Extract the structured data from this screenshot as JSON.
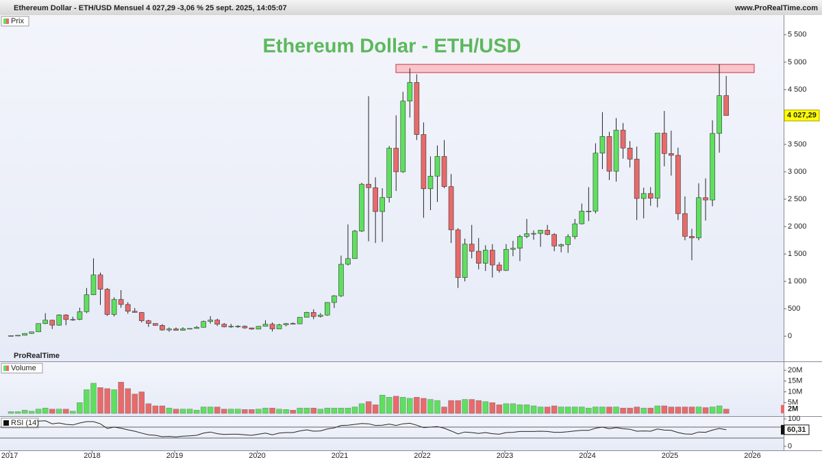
{
  "header": {
    "left": "Ethereum Dollar - ETH/USD Mensuel 4 027,29 -3,06 % 25 sept. 2025, 14:05:07",
    "right": "www.ProRealTime.com"
  },
  "watermark": "ProRealTime",
  "chart_data": [
    {
      "type": "candlestick",
      "panel": "Prix",
      "title": "Ethereum Dollar - ETH/USD",
      "title_color": "#5cb85c",
      "up_color": "#5ee05e",
      "down_color": "#e86a6a",
      "ylim": [
        -460,
        5860
      ],
      "yticks": [
        0,
        500,
        {
          "value": 1000,
          "label": "1 000"
        },
        {
          "value": 1500,
          "label": "1 500"
        },
        {
          "value": 2000,
          "label": "2 000"
        },
        {
          "value": 2500,
          "label": "2 500"
        },
        {
          "value": 3000,
          "label": "3 000"
        },
        {
          "value": 3500,
          "label": "3 500"
        },
        {
          "value": 4000,
          "label": "4 000"
        },
        {
          "value": 4500,
          "label": "4 500"
        },
        {
          "value": 5000,
          "label": "5 000"
        },
        {
          "value": 5500,
          "label": "5 500"
        }
      ],
      "x_labels": [
        "2017",
        "2018",
        "2019",
        "2020",
        "2021",
        "2022",
        "2023",
        "2024",
        "2025",
        "2026"
      ],
      "zone": {
        "low": 4810,
        "high": 4960,
        "color": "#f6c6cc"
      },
      "last_label": "4 027,29",
      "candles": [
        [
          8,
          11,
          8,
          10.7
        ],
        [
          10.7,
          17,
          10.5,
          16
        ],
        [
          16,
          55,
          15.5,
          50
        ],
        [
          50,
          80,
          42,
          80
        ],
        [
          80,
          230,
          78,
          230
        ],
        [
          230,
          420,
          220,
          292
        ],
        [
          292,
          300,
          130,
          201
        ],
        [
          201,
          400,
          190,
          388
        ],
        [
          388,
          400,
          200,
          303
        ],
        [
          303,
          355,
          280,
          305
        ],
        [
          305,
          520,
          290,
          447
        ],
        [
          447,
          880,
          420,
          756
        ],
        [
          756,
          1420,
          750,
          1118
        ],
        [
          1118,
          1160,
          570,
          856
        ],
        [
          856,
          880,
          370,
          396
        ],
        [
          396,
          710,
          360,
          670
        ],
        [
          670,
          840,
          520,
          578
        ],
        [
          578,
          620,
          410,
          455
        ],
        [
          455,
          515,
          430,
          433
        ],
        [
          433,
          440,
          250,
          282
        ],
        [
          282,
          300,
          170,
          232
        ],
        [
          232,
          235,
          190,
          197
        ],
        [
          197,
          220,
          100,
          113
        ],
        [
          113,
          160,
          82,
          133
        ],
        [
          133,
          160,
          100,
          107
        ],
        [
          107,
          165,
          100,
          136
        ],
        [
          136,
          145,
          128,
          141
        ],
        [
          141,
          185,
          140,
          162
        ],
        [
          162,
          285,
          155,
          268
        ],
        [
          268,
          365,
          230,
          294
        ],
        [
          294,
          320,
          185,
          218
        ],
        [
          218,
          240,
          160,
          172
        ],
        [
          172,
          225,
          152,
          180
        ],
        [
          180,
          200,
          152,
          182
        ],
        [
          182,
          195,
          135,
          151
        ],
        [
          151,
          155,
          117,
          129
        ],
        [
          129,
          185,
          126,
          180
        ],
        [
          180,
          290,
          175,
          218
        ],
        [
          218,
          250,
          86,
          133
        ],
        [
          133,
          225,
          130,
          207
        ],
        [
          207,
          240,
          180,
          231
        ],
        [
          231,
          250,
          220,
          225
        ],
        [
          225,
          345,
          220,
          345
        ],
        [
          345,
          445,
          340,
          434
        ],
        [
          434,
          490,
          310,
          360
        ],
        [
          360,
          420,
          340,
          386
        ],
        [
          386,
          620,
          373,
          615
        ],
        [
          615,
          750,
          515,
          737
        ],
        [
          737,
          1470,
          715,
          1313
        ],
        [
          1313,
          2040,
          1290,
          1416
        ],
        [
          1416,
          1940,
          1410,
          1918
        ],
        [
          1918,
          2800,
          1900,
          2773
        ],
        [
          2773,
          4380,
          1730,
          2710
        ],
        [
          2710,
          2900,
          1700,
          2275
        ],
        [
          2275,
          2700,
          1720,
          2530
        ],
        [
          2530,
          3470,
          2440,
          3430
        ],
        [
          3430,
          4030,
          2650,
          3000
        ],
        [
          3000,
          4460,
          2980,
          4290
        ],
        [
          4290,
          4890,
          3990,
          4630
        ],
        [
          4630,
          4780,
          3580,
          3680
        ],
        [
          3680,
          3900,
          2160,
          2690
        ],
        [
          2690,
          3280,
          2300,
          2920
        ],
        [
          2920,
          3480,
          2450,
          3280
        ],
        [
          3280,
          3580,
          2700,
          2730
        ],
        [
          2730,
          2960,
          1700,
          1940
        ],
        [
          1940,
          1970,
          880,
          1070
        ],
        [
          1070,
          1780,
          1000,
          1680
        ],
        [
          1680,
          2030,
          1420,
          1550
        ],
        [
          1550,
          1790,
          1220,
          1330
        ],
        [
          1330,
          1660,
          1190,
          1570
        ],
        [
          1570,
          1680,
          1070,
          1300
        ],
        [
          1300,
          1350,
          1160,
          1200
        ],
        [
          1200,
          1680,
          1190,
          1585
        ],
        [
          1585,
          1740,
          1460,
          1605
        ],
        [
          1605,
          1850,
          1370,
          1820
        ],
        [
          1820,
          2140,
          1790,
          1870
        ],
        [
          1870,
          1930,
          1760,
          1875
        ],
        [
          1875,
          1940,
          1630,
          1934
        ],
        [
          1934,
          2030,
          1840,
          1856
        ],
        [
          1856,
          1880,
          1550,
          1645
        ],
        [
          1645,
          1690,
          1530,
          1671
        ],
        [
          1671,
          1860,
          1520,
          1816
        ],
        [
          1816,
          2140,
          1770,
          2050
        ],
        [
          2050,
          2420,
          2040,
          2282
        ],
        [
          2282,
          2720,
          2100,
          2283
        ],
        [
          2283,
          3520,
          2240,
          3340
        ],
        [
          3340,
          4090,
          3050,
          3644
        ],
        [
          3644,
          3730,
          2850,
          3010
        ],
        [
          3010,
          3980,
          2820,
          3760
        ],
        [
          3760,
          3890,
          3240,
          3433
        ],
        [
          3433,
          3560,
          3080,
          3231
        ],
        [
          3231,
          3460,
          2120,
          2513
        ],
        [
          2513,
          2710,
          2150,
          2603
        ],
        [
          2603,
          2720,
          2380,
          2518
        ],
        [
          2518,
          3680,
          2350,
          3705
        ],
        [
          3705,
          4110,
          3100,
          3333
        ],
        [
          3333,
          3750,
          2930,
          3300
        ],
        [
          3300,
          3440,
          2120,
          2237
        ],
        [
          2237,
          2550,
          1750,
          1822
        ],
        [
          1822,
          1960,
          1385,
          1794
        ],
        [
          1794,
          2790,
          1750,
          2528
        ],
        [
          2528,
          2880,
          2110,
          2486
        ],
        [
          2486,
          3940,
          2370,
          3700
        ],
        [
          3700,
          4960,
          3350,
          4390
        ],
        [
          4390,
          4750,
          4060,
          4027.29
        ]
      ]
    },
    {
      "type": "bar",
      "panel": "Volume",
      "ylim": [
        -1270000,
        23500000
      ],
      "yticks": [
        {
          "value": 5000000,
          "label": "5M"
        },
        {
          "value": 10000000,
          "label": "10M"
        },
        {
          "value": 15000000,
          "label": "15M"
        },
        {
          "value": 20000000,
          "label": "20M"
        }
      ],
      "last_label": "2M",
      "values": [
        800000,
        800000,
        1500000,
        1000000,
        2000000,
        2500000,
        2000000,
        2000000,
        2000000,
        1000000,
        5000000,
        11000000,
        14000000,
        12000000,
        11500000,
        11000000,
        14500000,
        11500000,
        9000000,
        10000000,
        4500000,
        3500000,
        3500000,
        2500000,
        2000000,
        2000000,
        2000000,
        1500000,
        3000000,
        3000000,
        3000000,
        2000000,
        2000000,
        2000000,
        1800000,
        1800000,
        2000000,
        2500000,
        2500000,
        2000000,
        1800000,
        1500000,
        2500000,
        2500000,
        2500000,
        2000000,
        2500000,
        2500000,
        2500000,
        2500000,
        3000000,
        4500000,
        5500000,
        4000000,
        8500000,
        7500000,
        8000000,
        7500000,
        7000000,
        7500000,
        7000000,
        6500000,
        6000000,
        3000000,
        6000000,
        6000000,
        6500000,
        6500000,
        6000000,
        5500000,
        5000000,
        4000000,
        4500000,
        4500000,
        4000000,
        4000000,
        3500000,
        3000000,
        3000000,
        3500000,
        3000000,
        3000000,
        3000000,
        3000000,
        2500000,
        3000000,
        3000000,
        3000000,
        3000000,
        2500000,
        2500000,
        3000000,
        2500000,
        2500000,
        3500000,
        3500000,
        3000000,
        3000000,
        3000000,
        3000000,
        3000000,
        2700000,
        3000000,
        3500000,
        2000000
      ]
    },
    {
      "type": "line",
      "panel": "RSI (14)",
      "color": "#222222",
      "ylim": [
        -15,
        105
      ],
      "yticks": [
        0,
        100
      ],
      "levels": [
        70,
        30
      ],
      "last_label": "60,31",
      "values": [
        null,
        null,
        null,
        null,
        92,
        93,
        82,
        85,
        80,
        78,
        85,
        90,
        90,
        82,
        65,
        70,
        66,
        60,
        55,
        48,
        42,
        40,
        35,
        36,
        34,
        37,
        38,
        40,
        48,
        52,
        46,
        43,
        44,
        44,
        42,
        40,
        44,
        48,
        42,
        48,
        50,
        50,
        56,
        60,
        55,
        56,
        63,
        67,
        76,
        77,
        80,
        83,
        82,
        76,
        77,
        81,
        76,
        82,
        84,
        77,
        68,
        70,
        72,
        66,
        56,
        45,
        52,
        50,
        47,
        50,
        46,
        44,
        50,
        51,
        54,
        54,
        54,
        55,
        54,
        51,
        51,
        53,
        56,
        58,
        58,
        66,
        70,
        64,
        68,
        64,
        62,
        55,
        56,
        55,
        63,
        59,
        58,
        50,
        45,
        44,
        52,
        51,
        59,
        65,
        60.31
      ]
    }
  ]
}
